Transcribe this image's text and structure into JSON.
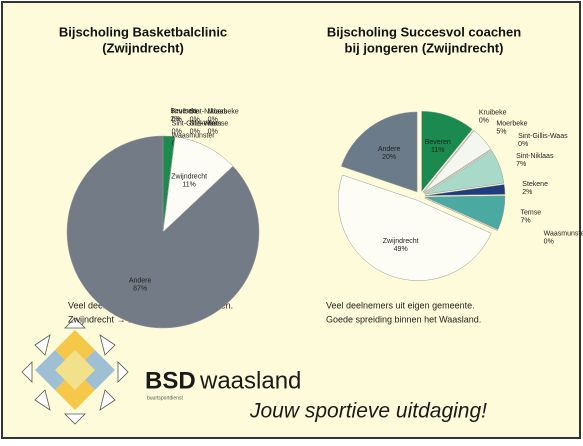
{
  "chart_data": [
    {
      "type": "pie",
      "title": [
        "Bijscholing Basketbalclinic",
        "(Zwijndrecht)"
      ],
      "categories": [
        "Beveren",
        "Kruibeke",
        "Sint-Niklaas",
        "Moerbeke",
        "Sint-Gillis-Waas",
        "Stekene",
        "Temse",
        "Waasmunster",
        "Zwijndrecht",
        "Andere"
      ],
      "values": [
        2,
        0,
        0,
        0,
        0,
        0,
        0,
        0,
        11,
        87
      ],
      "value_labels": [
        "2%",
        "0%",
        "0%",
        "0%",
        "0%",
        "0%",
        "0%",
        "0%",
        "11%",
        "87%"
      ],
      "colors": [
        "#1a8a4e",
        "#ffffff",
        "#ffffff",
        "#ffffff",
        "#ffffff",
        "#ffffff",
        "#ffffff",
        "#ffffff",
        "#fdfdf6",
        "#737c86"
      ],
      "explode": false,
      "caption": [
        "Veel deelnemers uit provincie Antwerpen.",
        "Zwijndrecht → BSD Antwerpen"
      ]
    },
    {
      "type": "pie",
      "title": [
        "Bijscholing Succesvol coachen",
        "bij jongeren (Zwijndrecht)"
      ],
      "categories": [
        "Beveren",
        "Kruibeke",
        "Moerbeke",
        "Sint-Gillis-Waas",
        "Sint-Niklaas",
        "Stekene",
        "Temse",
        "Waasmunster",
        "Zwijndrecht",
        "Andere"
      ],
      "values": [
        11,
        0,
        5,
        0,
        7,
        2,
        7,
        0,
        49,
        20
      ],
      "value_labels": [
        "11%",
        "0%",
        "5%",
        "0%",
        "7%",
        "2%",
        "7%",
        "0%",
        "49%",
        "20%"
      ],
      "colors": [
        "#1a8a4e",
        "#ffffff",
        "#f4f6f0",
        "#e8f2ec",
        "#a9d9c9",
        "#1f3c7c",
        "#4aa9a1",
        "#ffffff",
        "#fdfdf6",
        "#6b7b89"
      ],
      "explode": true,
      "caption": [
        "Veel deelnemers uit eigen gemeente.",
        "Goede spreiding binnen het Waasland."
      ]
    }
  ],
  "footer": {
    "brand_bold": "BSD",
    "brand": "waasland",
    "brand_sub": "buurtsportdienst",
    "slogan": "Jouw sportieve uitdaging!"
  }
}
